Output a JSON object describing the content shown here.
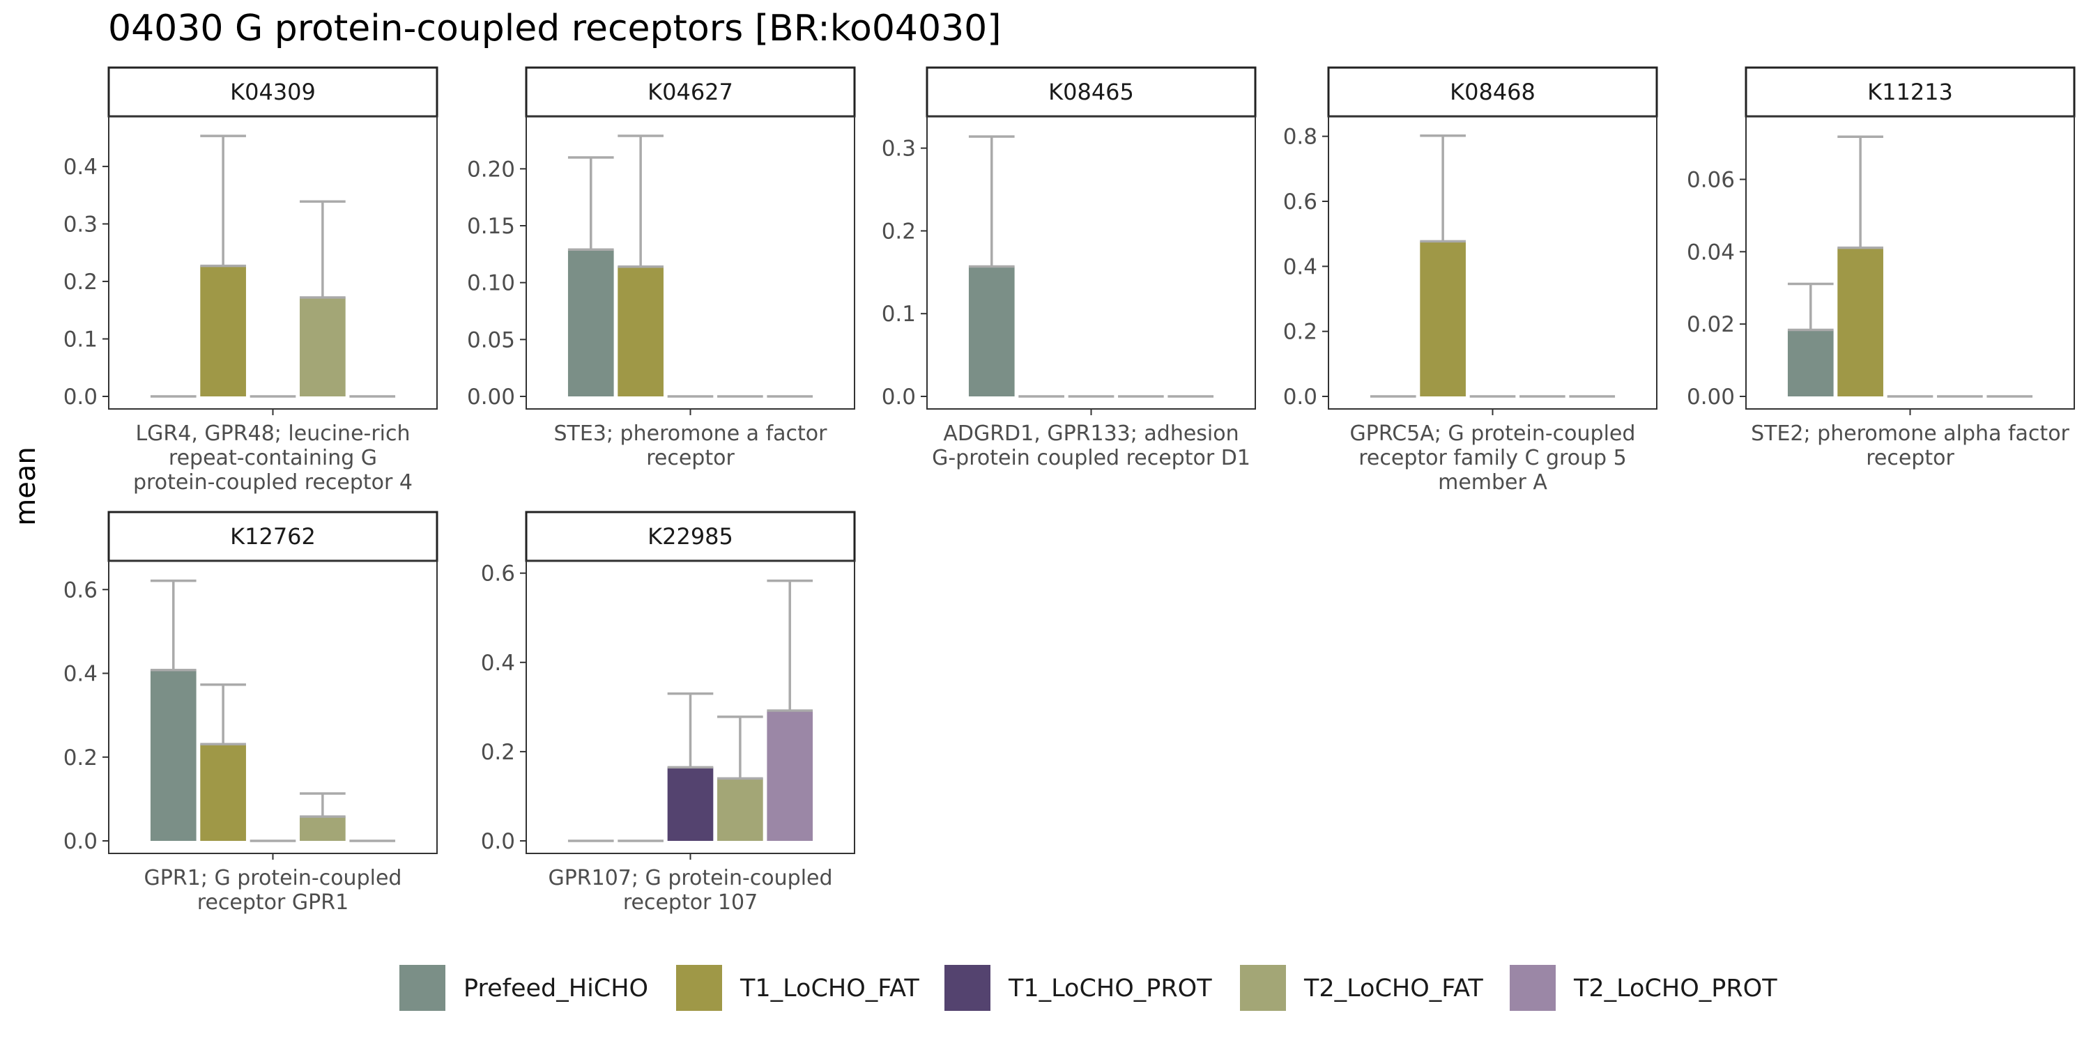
{
  "title": "04030 G protein-coupled receptors [BR:ko04030]",
  "ylabel": "mean",
  "colors": {
    "Prefeed_HiCHO": "#7b8f87",
    "T1_LoCHO_FAT": "#9f9847",
    "T1_LoCHO_PROT": "#54436f",
    "T2_LoCHO_FAT": "#a3a676",
    "T2_LoCHO_PROT": "#9b87a6",
    "errorbar": "#aaaaaa"
  },
  "legend": [
    "Prefeed_HiCHO",
    "T1_LoCHO_FAT",
    "T1_LoCHO_PROT",
    "T2_LoCHO_FAT",
    "T2_LoCHO_PROT"
  ],
  "chart_data": [
    {
      "type": "bar",
      "strip": "K04309",
      "xlabel_lines": [
        "LGR4, GPR48; leucine-rich",
        "repeat-containing G",
        "protein-coupled receptor 4"
      ],
      "ylim": [
        0,
        0.475
      ],
      "yticks": [
        0.0,
        0.1,
        0.2,
        0.3,
        0.4
      ],
      "tick_labels": [
        "0.0",
        "0.1",
        "0.2",
        "0.3",
        "0.4"
      ],
      "categories": [
        "Prefeed_HiCHO",
        "T1_LoCHO_FAT",
        "T1_LoCHO_PROT",
        "T2_LoCHO_FAT",
        "T2_LoCHO_PROT"
      ],
      "values": [
        0,
        0.227,
        0,
        0.172,
        0
      ],
      "upper": [
        0,
        0.453,
        0,
        0.339,
        0
      ]
    },
    {
      "type": "bar",
      "strip": "K04627",
      "xlabel_lines": [
        "STE3; pheromone a factor",
        "receptor"
      ],
      "ylim": [
        0,
        0.24
      ],
      "yticks": [
        0.0,
        0.05,
        0.1,
        0.15,
        0.2
      ],
      "tick_labels": [
        "0.00",
        "0.05",
        "0.10",
        "0.15",
        "0.20"
      ],
      "categories": [
        "Prefeed_HiCHO",
        "T1_LoCHO_FAT",
        "T1_LoCHO_PROT",
        "T2_LoCHO_FAT",
        "T2_LoCHO_PROT"
      ],
      "values": [
        0.129,
        0.114,
        0,
        0,
        0
      ],
      "upper": [
        0.21,
        0.229,
        0,
        0,
        0
      ]
    },
    {
      "type": "bar",
      "strip": "K08465",
      "xlabel_lines": [
        "ADGRD1, GPR133; adhesion",
        "G-protein coupled receptor D1"
      ],
      "ylim": [
        0,
        0.33
      ],
      "yticks": [
        0.0,
        0.1,
        0.2,
        0.3
      ],
      "tick_labels": [
        "0.0",
        "0.1",
        "0.2",
        "0.3"
      ],
      "categories": [
        "Prefeed_HiCHO",
        "T1_LoCHO_FAT",
        "T1_LoCHO_PROT",
        "T2_LoCHO_FAT",
        "T2_LoCHO_PROT"
      ],
      "values": [
        0.157,
        0,
        0,
        0,
        0
      ],
      "upper": [
        0.314,
        0,
        0,
        0,
        0
      ]
    },
    {
      "type": "bar",
      "strip": "K08468",
      "xlabel_lines": [
        "GPRC5A; G protein-coupled",
        "receptor family C group 5",
        "member A"
      ],
      "ylim": [
        0,
        0.84
      ],
      "yticks": [
        0.0,
        0.2,
        0.4,
        0.6,
        0.8
      ],
      "tick_labels": [
        "0.0",
        "0.2",
        "0.4",
        "0.6",
        "0.8"
      ],
      "categories": [
        "Prefeed_HiCHO",
        "T1_LoCHO_FAT",
        "T1_LoCHO_PROT",
        "T2_LoCHO_FAT",
        "T2_LoCHO_PROT"
      ],
      "values": [
        0,
        0.477,
        0,
        0,
        0
      ],
      "upper": [
        0,
        0.802,
        0,
        0,
        0
      ]
    },
    {
      "type": "bar",
      "strip": "K11213",
      "xlabel_lines": [
        "STE2; pheromone alpha factor",
        "receptor"
      ],
      "ylim": [
        0,
        0.0755
      ],
      "yticks": [
        0.0,
        0.02,
        0.04,
        0.06
      ],
      "tick_labels": [
        "0.00",
        "0.02",
        "0.04",
        "0.06"
      ],
      "categories": [
        "Prefeed_HiCHO",
        "T1_LoCHO_FAT",
        "T1_LoCHO_PROT",
        "T2_LoCHO_FAT",
        "T2_LoCHO_PROT"
      ],
      "values": [
        0.0184,
        0.0411,
        0,
        0,
        0
      ],
      "upper": [
        0.0311,
        0.0718,
        0,
        0,
        0
      ]
    },
    {
      "type": "bar",
      "strip": "K12762",
      "xlabel_lines": [
        "GPR1; G protein-coupled",
        "receptor GPR1"
      ],
      "ylim": [
        0,
        0.652
      ],
      "yticks": [
        0.0,
        0.2,
        0.4,
        0.6
      ],
      "tick_labels": [
        "0.0",
        "0.2",
        "0.4",
        "0.6"
      ],
      "categories": [
        "Prefeed_HiCHO",
        "T1_LoCHO_FAT",
        "T1_LoCHO_PROT",
        "T2_LoCHO_FAT",
        "T2_LoCHO_PROT"
      ],
      "values": [
        0.408,
        0.231,
        0,
        0.058,
        0
      ],
      "upper": [
        0.621,
        0.373,
        0,
        0.113,
        0
      ]
    },
    {
      "type": "bar",
      "strip": "K22985",
      "xlabel_lines": [
        "GPR107; G protein-coupled",
        "receptor 107"
      ],
      "ylim": [
        0,
        0.612
      ],
      "yticks": [
        0.0,
        0.2,
        0.4,
        0.6
      ],
      "tick_labels": [
        "0.0",
        "0.2",
        "0.4",
        "0.6"
      ],
      "categories": [
        "Prefeed_HiCHO",
        "T1_LoCHO_FAT",
        "T1_LoCHO_PROT",
        "T2_LoCHO_FAT",
        "T2_LoCHO_PROT"
      ],
      "values": [
        0,
        0,
        0.165,
        0.14,
        0.292
      ],
      "upper": [
        0,
        0,
        0.33,
        0.278,
        0.583
      ]
    }
  ]
}
